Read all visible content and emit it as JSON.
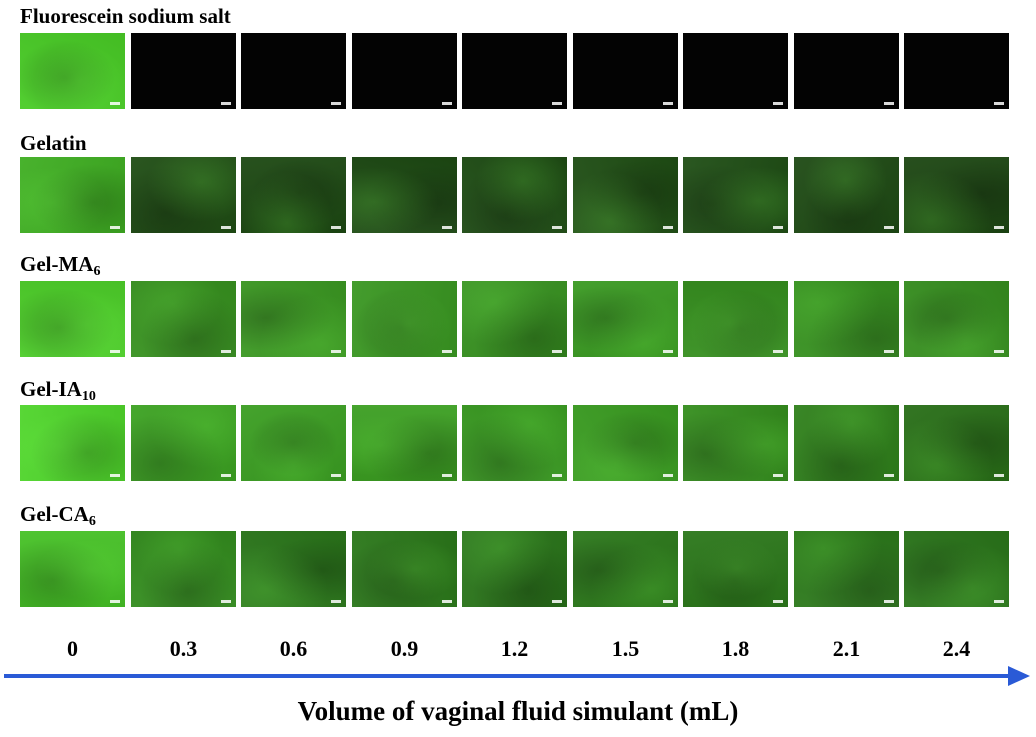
{
  "figure": {
    "rows": [
      {
        "key": "fluorescein",
        "label": "Fluorescein sodium salt",
        "sub": "",
        "tiles": [
          "#49cc26",
          "#030303",
          "#030303",
          "#030303",
          "#030303",
          "#030303",
          "#030303",
          "#030303",
          "#030303"
        ]
      },
      {
        "key": "gelatin",
        "label": "Gelatin",
        "sub": "",
        "tiles": [
          "#3fae22",
          "#1f4d14",
          "#1c4812",
          "#1d4a13",
          "#1e4c14",
          "#1f4e14",
          "#1f4e15",
          "#1e4a14",
          "#1c4612"
        ]
      },
      {
        "key": "gel-ma",
        "label": "Gel-MA",
        "sub": "6",
        "tiles": [
          "#4ed02a",
          "#37911f",
          "#3b9822",
          "#3a9722",
          "#379120",
          "#3a9a22",
          "#368f1f",
          "#36901f",
          "#368e1f"
        ]
      },
      {
        "key": "gel-ia",
        "label": "Gel-IA",
        "sub": "10",
        "tiles": [
          "#4fd52b",
          "#3ca222",
          "#3b9e22",
          "#3c9f22",
          "#399a21",
          "#3a9c21",
          "#358e1e",
          "#2f801b",
          "#286e17"
        ]
      },
      {
        "key": "gel-ca",
        "label": "Gel-CA",
        "sub": "6",
        "tiles": [
          "#46c126",
          "#338c1e",
          "#2a761a",
          "#2b781a",
          "#2a751a",
          "#2b781a",
          "#2b771a",
          "#2c791b",
          "#2a751a"
        ]
      }
    ],
    "volumes": [
      "0",
      "0.3",
      "0.6",
      "0.9",
      "1.2",
      "1.5",
      "1.8",
      "2.1",
      "2.4"
    ],
    "x_axis_title": "Volume of vaginal fluid simulant (mL)",
    "arrow_color": "#2a5ad6"
  }
}
